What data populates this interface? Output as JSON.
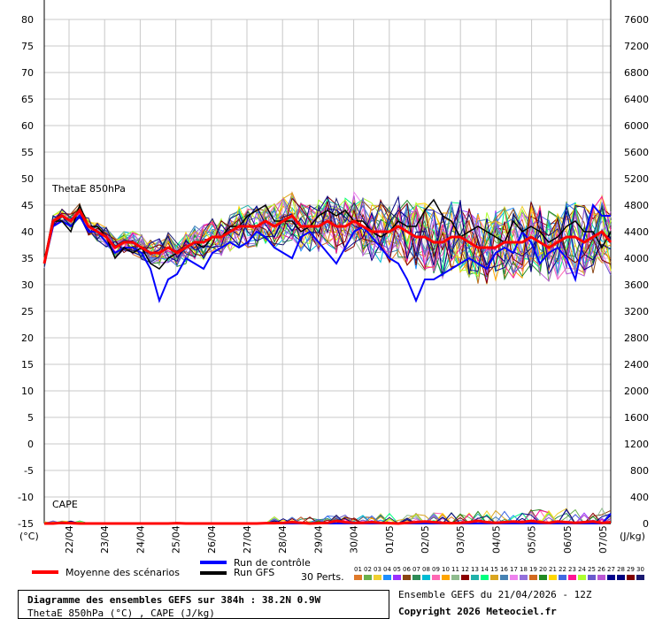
{
  "chart_data": {
    "type": "line",
    "left_axis": {
      "label": "(°C)",
      "ticks": [
        "80",
        "75",
        "70",
        "65",
        "60",
        "55",
        "50",
        "45",
        "40",
        "35",
        "30",
        "25",
        "20",
        "15",
        "10",
        "5",
        "0",
        "-5",
        "-10",
        "-15"
      ],
      "range": [
        -15,
        80
      ]
    },
    "right_axis": {
      "label": "(J/kg)",
      "ticks": [
        "7600",
        "7200",
        "6800",
        "6400",
        "6000",
        "5600",
        "5200",
        "4800",
        "4400",
        "4000",
        "3600",
        "3200",
        "2800",
        "2400",
        "2000",
        "1600",
        "1200",
        "800",
        "400",
        "0"
      ],
      "range": [
        0,
        7600
      ]
    },
    "x_ticks": [
      "22/04",
      "23/04",
      "24/04",
      "25/04",
      "26/04",
      "27/04",
      "28/04",
      "29/04",
      "30/04",
      "01/05",
      "02/05",
      "03/05",
      "04/05",
      "05/05",
      "06/05",
      "07/05"
    ],
    "annotations": {
      "thetae": "ThetaE 850hPa",
      "cape": "CAPE"
    },
    "mean_thetae": [
      34,
      42,
      43,
      42,
      44,
      41,
      40,
      39,
      37,
      38,
      38,
      37,
      36,
      36,
      37,
      36,
      37,
      38,
      38,
      39,
      39,
      40,
      41,
      41,
      41,
      42,
      41,
      42,
      43,
      41,
      41,
      41,
      42,
      41,
      41,
      42,
      41,
      40,
      40,
      40,
      41,
      40,
      39,
      39,
      38,
      38,
      39,
      39,
      38,
      37,
      37,
      37,
      38,
      38,
      38,
      39,
      38,
      37,
      38,
      39,
      39,
      38,
      39,
      40,
      38
    ],
    "control_thetae": [
      34,
      41,
      42,
      41,
      43,
      40,
      40,
      38,
      36,
      37,
      37,
      36,
      33,
      27,
      31,
      32,
      35,
      34,
      33,
      36,
      37,
      38,
      37,
      38,
      40,
      39,
      37,
      36,
      35,
      39,
      40,
      38,
      36,
      34,
      37,
      40,
      41,
      39,
      37,
      35,
      34,
      31,
      27,
      31,
      31,
      32,
      33,
      34,
      35,
      34,
      33,
      36,
      37,
      36,
      40,
      38,
      34,
      36,
      37,
      35,
      31,
      39,
      45,
      43,
      43
    ],
    "gfs_thetae": [
      34,
      42,
      42,
      40,
      45,
      41,
      41,
      39,
      35,
      37,
      36,
      37,
      34,
      33,
      35,
      36,
      37,
      38,
      37,
      39,
      39,
      41,
      41,
      43,
      44,
      45,
      42,
      42,
      42,
      40,
      41,
      43,
      44,
      43,
      44,
      42,
      42,
      40,
      39,
      40,
      42,
      41,
      41,
      44,
      46,
      43,
      42,
      39,
      40,
      41,
      40,
      39,
      38,
      42,
      40,
      41,
      40,
      38,
      39,
      41,
      42,
      40,
      40,
      37,
      40
    ],
    "mean_cape": [
      0,
      0,
      10,
      5,
      0,
      0,
      0,
      0,
      0,
      0,
      0,
      0,
      0,
      0,
      0,
      5,
      0,
      0,
      0,
      0,
      0,
      0,
      0,
      0,
      0,
      5,
      5,
      10,
      20,
      10,
      0,
      5,
      10,
      40,
      20,
      10,
      10,
      20,
      10,
      5,
      0,
      10,
      20,
      30,
      20,
      10,
      5,
      10,
      20,
      40,
      20,
      10,
      20,
      30,
      20,
      40,
      20,
      10,
      30,
      20,
      10,
      20,
      30,
      10,
      20
    ],
    "control_cape": [
      0,
      0,
      0,
      0,
      0,
      0,
      0,
      0,
      0,
      0,
      0,
      0,
      0,
      0,
      0,
      0,
      0,
      0,
      0,
      0,
      0,
      0,
      0,
      0,
      0,
      0,
      0,
      0,
      0,
      0,
      0,
      0,
      0,
      0,
      0,
      0,
      0,
      0,
      0,
      0,
      0,
      0,
      0,
      0,
      0,
      0,
      0,
      0,
      0,
      0,
      0,
      0,
      0,
      0,
      0,
      0,
      0,
      0,
      0,
      0,
      0,
      0,
      0,
      0,
      150
    ],
    "gfs_cape": [
      0,
      0,
      0,
      0,
      0,
      0,
      0,
      0,
      0,
      0,
      0,
      0,
      0,
      0,
      0,
      0,
      0,
      0,
      0,
      0,
      0,
      0,
      0,
      0,
      0,
      0,
      0,
      0,
      0,
      0,
      0,
      0,
      0,
      0,
      0,
      0,
      0,
      0,
      0,
      0,
      0,
      0,
      0,
      0,
      0,
      0,
      0,
      0,
      0,
      0,
      0,
      0,
      0,
      0,
      0,
      0,
      0,
      0,
      0,
      0,
      0,
      0,
      0,
      0,
      0
    ],
    "perturbation_colors": [
      "#e07a2a",
      "#6ab04c",
      "#f0d030",
      "#1e90ff",
      "#9b30ff",
      "#8b4513",
      "#2e8b57",
      "#00bcd4",
      "#ff69b4",
      "#ffa500",
      "#8fbc8f",
      "#8b0000",
      "#20b2aa",
      "#00ff7f",
      "#daa520",
      "#4682b4",
      "#ee82ee",
      "#9370db",
      "#d2691e",
      "#228b22",
      "#ffd700",
      "#4169e1",
      "#ff1493",
      "#adff2f",
      "#6a5acd",
      "#ba55d3",
      "#00008b",
      "#000080",
      "#800000",
      "#191970"
    ],
    "perturbation_numbers": [
      "01",
      "02",
      "03",
      "04",
      "05",
      "06",
      "07",
      "08",
      "09",
      "10",
      "11",
      "12",
      "13",
      "14",
      "15",
      "16",
      "17",
      "18",
      "19",
      "20",
      "21",
      "22",
      "23",
      "24",
      "25",
      "26",
      "27",
      "28",
      "29",
      "30"
    ]
  },
  "legend": {
    "mean": "Moyenne des scénarios",
    "control": "Run de contrôle",
    "gfs": "Run GFS",
    "perts": "30 Perts.",
    "mean_color": "#ff0000",
    "control_color": "#0000ff",
    "gfs_color": "#000000"
  },
  "info_box": {
    "line1": "Diagramme des ensembles GEFS sur 384h : 38.2N 0.9W",
    "line2": "ThetaE 850hPa (°C) , CAPE (J/kg)"
  },
  "footer": {
    "ensemble": "Ensemble GEFS du 21/04/2026 - 12Z",
    "copyright": "Copyright 2026 Meteociel.fr"
  }
}
